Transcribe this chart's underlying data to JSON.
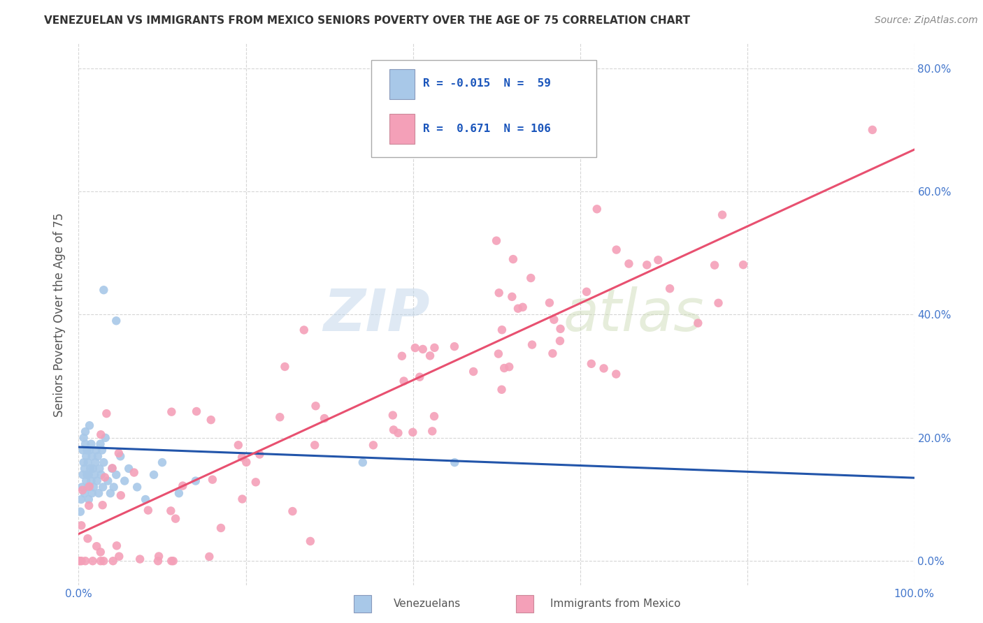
{
  "title": "VENEZUELAN VS IMMIGRANTS FROM MEXICO SENIORS POVERTY OVER THE AGE OF 75 CORRELATION CHART",
  "source": "Source: ZipAtlas.com",
  "ylabel": "Seniors Poverty Over the Age of 75",
  "xmin": 0.0,
  "xmax": 1.0,
  "ymin": -0.04,
  "ymax": 0.84,
  "xticks": [
    0.0,
    0.2,
    0.4,
    0.6,
    0.8,
    1.0
  ],
  "xtick_labels": [
    "0.0%",
    "",
    "",
    "",
    "",
    "100.0%"
  ],
  "yticks": [
    0.0,
    0.2,
    0.4,
    0.6,
    0.8
  ],
  "ytick_labels_right": [
    "0.0%",
    "20.0%",
    "40.0%",
    "60.0%",
    "80.0%"
  ],
  "venezuelan_color": "#a8c8e8",
  "mexican_color": "#f4a0b8",
  "venezuelan_line_color": "#2255aa",
  "mexican_line_color": "#e85070",
  "background_color": "#ffffff",
  "grid_color": "#cccccc",
  "legend_R1": "-0.015",
  "legend_N1": "59",
  "legend_R2": "0.671",
  "legend_N2": "106",
  "tick_color": "#4477cc",
  "title_color": "#333333",
  "title_fontsize": 11.0,
  "source_fontsize": 10.0
}
